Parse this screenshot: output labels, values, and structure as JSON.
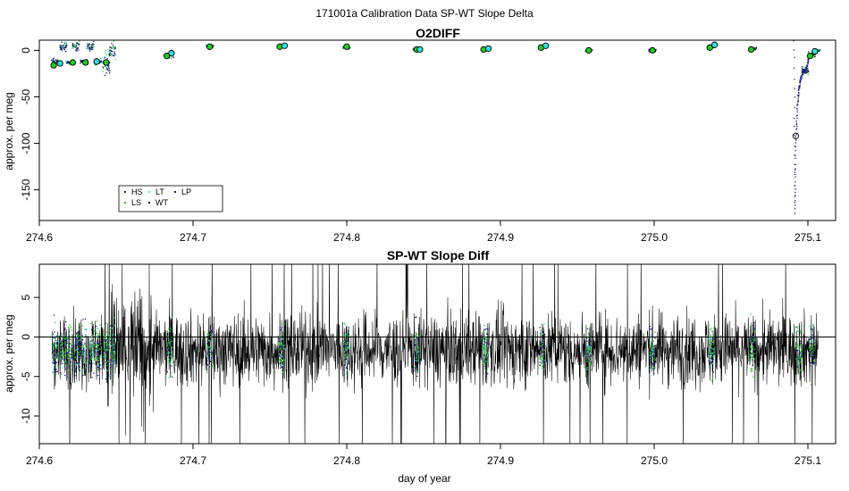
{
  "figure": {
    "super_title": "171001a   Calibration Data SP-WT Slope Delta",
    "xlabel": "day of year"
  },
  "colors": {
    "HS": "#1a1a80",
    "LS": "#22cc22",
    "LT": "#33dddd",
    "WT": "#000000",
    "LP": "#1a1a80",
    "line": "#000000"
  },
  "chart_data": [
    {
      "type": "scatter",
      "title": "O2DIFF",
      "ylabel": "approx. per meg",
      "xlim": [
        274.613,
        275.113
      ],
      "ylim": [
        -183,
        11
      ],
      "xticks": [
        "274.6",
        "274.7",
        "274.8",
        "274.9",
        "275.0",
        "275.1"
      ],
      "yticks": [
        "0",
        "-50",
        "-100",
        "-150"
      ],
      "legend": {
        "placement": "bottom-left",
        "entries": [
          "HS",
          "LS",
          "LT",
          "WT",
          "LP"
        ]
      },
      "point_clusters": [
        {
          "x": 274.623,
          "y": -12,
          "spread": 4
        },
        {
          "x": 274.628,
          "y": 4,
          "spread": 8
        },
        {
          "x": 274.632,
          "y": -13,
          "spread": 3
        },
        {
          "x": 274.636,
          "y": 5,
          "spread": 7
        },
        {
          "x": 274.641,
          "y": -12,
          "spread": 3
        },
        {
          "x": 274.645,
          "y": 4,
          "spread": 8
        },
        {
          "x": 274.65,
          "y": -12,
          "spread": 4
        },
        {
          "x": 274.655,
          "y": -15,
          "spread": 20
        },
        {
          "x": 274.659,
          "y": 0,
          "spread": 12
        },
        {
          "x": 274.695,
          "y": -5,
          "spread": 5
        },
        {
          "x": 274.72,
          "y": 4,
          "spread": 2
        },
        {
          "x": 274.765,
          "y": 4,
          "spread": 2
        },
        {
          "x": 274.806,
          "y": 3,
          "spread": 2
        },
        {
          "x": 274.85,
          "y": 1,
          "spread": 2
        },
        {
          "x": 274.893,
          "y": 1,
          "spread": 2
        },
        {
          "x": 274.929,
          "y": 4,
          "spread": 2
        },
        {
          "x": 274.958,
          "y": 0,
          "spread": 2
        },
        {
          "x": 274.998,
          "y": 0,
          "spread": 2
        },
        {
          "x": 275.035,
          "y": 4,
          "spread": 2
        },
        {
          "x": 275.061,
          "y": 2,
          "spread": 2
        },
        {
          "x": 275.094,
          "y": -22,
          "spread": 6
        },
        {
          "x": 275.098,
          "y": -4,
          "spread": 4
        },
        {
          "x": 275.101,
          "y": 0,
          "spread": 2
        }
      ],
      "circle_markers": [
        {
          "x": 274.622,
          "y": -16,
          "series": "LS"
        },
        {
          "x": 274.626,
          "y": -14,
          "series": "LT"
        },
        {
          "x": 274.634,
          "y": -13,
          "series": "LS"
        },
        {
          "x": 274.642,
          "y": -13,
          "series": "LS"
        },
        {
          "x": 274.649,
          "y": -12,
          "series": "LT"
        },
        {
          "x": 274.655,
          "y": -13,
          "series": "LS"
        },
        {
          "x": 274.693,
          "y": -6,
          "series": "LS"
        },
        {
          "x": 274.696,
          "y": -3,
          "series": "LT"
        },
        {
          "x": 274.72,
          "y": 4,
          "series": "LS"
        },
        {
          "x": 274.764,
          "y": 4,
          "series": "LS"
        },
        {
          "x": 274.767,
          "y": 5,
          "series": "LT"
        },
        {
          "x": 274.806,
          "y": 4,
          "series": "LS"
        },
        {
          "x": 274.85,
          "y": 1,
          "series": "LS"
        },
        {
          "x": 274.852,
          "y": 1,
          "series": "LT"
        },
        {
          "x": 274.892,
          "y": 1,
          "series": "LS"
        },
        {
          "x": 274.895,
          "y": 2,
          "series": "LT"
        },
        {
          "x": 274.928,
          "y": 3,
          "series": "LS"
        },
        {
          "x": 274.931,
          "y": 5,
          "series": "LT"
        },
        {
          "x": 274.958,
          "y": 0,
          "series": "LS"
        },
        {
          "x": 274.998,
          "y": 0,
          "series": "LS"
        },
        {
          "x": 275.034,
          "y": 3,
          "series": "LS"
        },
        {
          "x": 275.037,
          "y": 6,
          "series": "LT"
        },
        {
          "x": 275.06,
          "y": 1,
          "series": "LS"
        },
        {
          "x": 275.088,
          "y": -92,
          "series": "WT"
        },
        {
          "x": 275.097,
          "y": -6,
          "series": "LS"
        },
        {
          "x": 275.1,
          "y": -1,
          "series": "LT"
        }
      ],
      "wt_drop": [
        {
          "x": 275.087,
          "y": 12
        },
        {
          "x": 275.0875,
          "y": -175
        },
        {
          "x": 275.088,
          "y": -100
        },
        {
          "x": 275.089,
          "y": -60
        },
        {
          "x": 275.09,
          "y": -42
        },
        {
          "x": 275.091,
          "y": -30
        },
        {
          "x": 275.093,
          "y": -22
        },
        {
          "x": 275.095,
          "y": -20
        },
        {
          "x": 275.096,
          "y": -8
        }
      ]
    },
    {
      "type": "line",
      "title": "SP-WT Slope Diff",
      "ylabel": "approx. per meg",
      "xlim": [
        274.613,
        275.113
      ],
      "ylim": [
        -13.5,
        9.2
      ],
      "xticks": [
        "274.6",
        "274.7",
        "274.8",
        "274.9",
        "275.0",
        "275.1"
      ],
      "yticks": [
        "5",
        "0",
        "-5",
        "-10"
      ],
      "hline": 0,
      "x_start": 274.621,
      "x_end": 275.102,
      "mean": -1.6,
      "noise_amplitude": 6,
      "calibration_windows": [
        274.623,
        274.628,
        274.632,
        274.637,
        274.641,
        274.646,
        274.65,
        274.655,
        274.659,
        274.695,
        274.72,
        274.765,
        274.806,
        274.85,
        274.893,
        274.929,
        274.958,
        274.998,
        275.035,
        275.061,
        275.09,
        275.098
      ]
    }
  ]
}
